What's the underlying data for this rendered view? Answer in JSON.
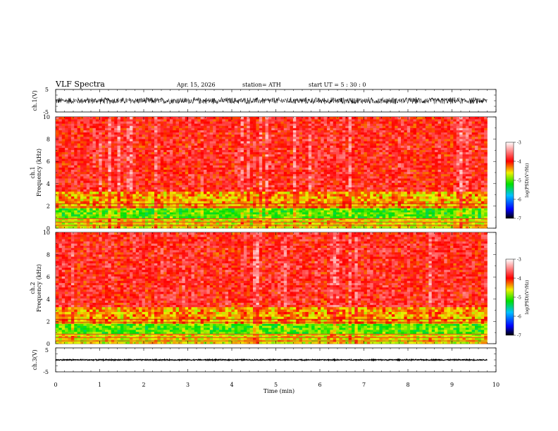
{
  "header": {
    "title": "VLF  Spectra",
    "date": "Apr. 15, 2026",
    "station": "station= ATH",
    "start": "start  UT  =    5  : 30 : 0"
  },
  "chart_data": {
    "type": "heatmap",
    "title": "VLF  Spectra",
    "xlabel": "Time  (min)",
    "x_range": [
      0,
      10
    ],
    "x_ticks": [
      "0",
      "1",
      "2",
      "3",
      "4",
      "5",
      "6",
      "7",
      "8",
      "9",
      "10"
    ],
    "data_end_min": 9.8,
    "panels": [
      {
        "name": "ch1-waveform",
        "ylabel": "ch.1(V)",
        "y_range": [
          -5,
          5
        ],
        "y_ticks": [
          "5",
          "-5"
        ],
        "amplitude_v": 1.6
      },
      {
        "name": "ch1-spectrogram",
        "ylabel_1": "ch.1",
        "ylabel_2": "Frequency  (kHz)",
        "y_range": [
          0,
          10
        ],
        "y_ticks": [
          "0",
          "2",
          "4",
          "6",
          "8",
          "10"
        ],
        "colorbar_label": "log(PSD)(V²/Hz)",
        "colorbar_range": [
          -7,
          -3
        ],
        "colorbar_ticks": [
          "-3",
          "-4",
          "-5",
          "-6",
          "-7"
        ],
        "bands": [
          {
            "from_khz": 0,
            "to_khz": 0.9,
            "log_psd": -4.6
          },
          {
            "from_khz": 0.9,
            "to_khz": 1.8,
            "log_psd": -5.0
          },
          {
            "from_khz": 1.8,
            "to_khz": 3.3,
            "log_psd": -4.4
          },
          {
            "from_khz": 3.3,
            "to_khz": 10,
            "log_psd": -3.9
          }
        ]
      },
      {
        "name": "ch2-spectrogram",
        "ylabel_1": "ch.2",
        "ylabel_2": "Frequency  (kHz)",
        "y_range": [
          0,
          10
        ],
        "y_ticks": [
          "0",
          "2",
          "4",
          "6",
          "8",
          "10"
        ],
        "colorbar_label": "log(PSD)(V²/Hz)",
        "colorbar_range": [
          -7,
          -3
        ],
        "colorbar_ticks": [
          "-3",
          "-4",
          "-5",
          "-6",
          "-7"
        ],
        "bands": [
          {
            "from_khz": 0,
            "to_khz": 0.9,
            "log_psd": -4.6
          },
          {
            "from_khz": 0.9,
            "to_khz": 1.8,
            "log_psd": -5.0
          },
          {
            "from_khz": 1.8,
            "to_khz": 3.3,
            "log_psd": -4.4
          },
          {
            "from_khz": 3.3,
            "to_khz": 10,
            "log_psd": -3.9
          }
        ]
      },
      {
        "name": "ch3-waveform",
        "ylabel": "ch.3(V)",
        "y_range": [
          -5,
          5
        ],
        "y_ticks": [
          "5",
          "-5"
        ],
        "amplitude_v": 0.25
      }
    ]
  }
}
